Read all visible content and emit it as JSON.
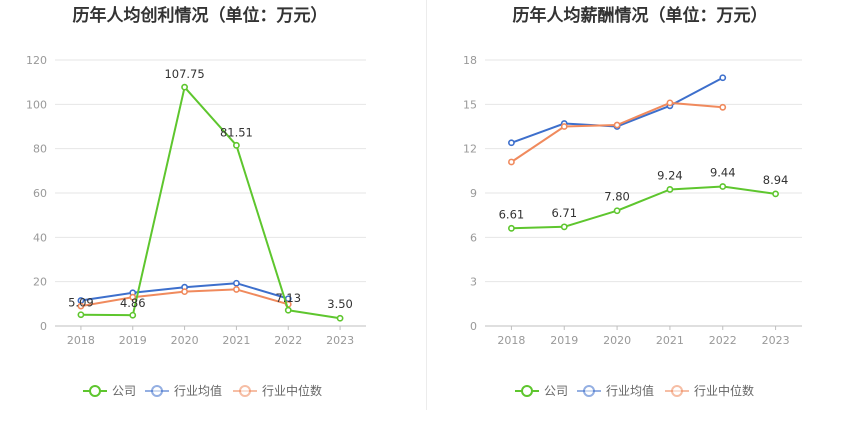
{
  "legend": {
    "company": "公司",
    "industry_avg": "行业均值",
    "industry_median": "行业中位数"
  },
  "colors": {
    "company": "#5ec62e",
    "industry_avg": "#3d6fcc",
    "industry_median": "#f08a5d",
    "grid": "#e6e6e6",
    "axis": "#bfbfbf"
  },
  "chart_data": [
    {
      "type": "line",
      "title": "历年人均创利情况（单位：万元）",
      "categories": [
        "2018",
        "2019",
        "2020",
        "2021",
        "2022",
        "2023"
      ],
      "ylim": [
        0,
        120
      ],
      "yticks": [
        0,
        20,
        40,
        60,
        80,
        100,
        120
      ],
      "grid": true,
      "legend_position": "bottom",
      "series": [
        {
          "name": "公司",
          "key": "company",
          "values": [
            5.09,
            4.86,
            107.75,
            81.51,
            7.13,
            3.5
          ],
          "labels": [
            "5.09",
            "4.86",
            "107.75",
            "81.51",
            "7.13",
            "3.50"
          ]
        },
        {
          "name": "行业均值",
          "key": "industry_avg",
          "values": [
            11.5,
            15.0,
            17.5,
            19.3,
            12.3,
            null
          ]
        },
        {
          "name": "行业中位数",
          "key": "industry_median",
          "values": [
            9.0,
            13.0,
            15.5,
            16.5,
            9.8,
            null
          ]
        }
      ]
    },
    {
      "type": "line",
      "title": "历年人均薪酬情况（单位：万元）",
      "categories": [
        "2018",
        "2019",
        "2020",
        "2021",
        "2022",
        "2023"
      ],
      "ylim": [
        0,
        18
      ],
      "yticks": [
        0,
        3,
        6,
        9,
        12,
        15,
        18
      ],
      "grid": true,
      "legend_position": "bottom",
      "series": [
        {
          "name": "公司",
          "key": "company",
          "values": [
            6.61,
            6.71,
            7.8,
            9.24,
            9.44,
            8.94
          ],
          "labels": [
            "6.61",
            "6.71",
            "7.80",
            "9.24",
            "9.44",
            "8.94"
          ]
        },
        {
          "name": "行业均值",
          "key": "industry_avg",
          "values": [
            12.4,
            13.7,
            13.5,
            14.9,
            16.8,
            null
          ]
        },
        {
          "name": "行业中位数",
          "key": "industry_median",
          "values": [
            11.1,
            13.5,
            13.6,
            15.1,
            14.8,
            null
          ]
        }
      ]
    }
  ]
}
